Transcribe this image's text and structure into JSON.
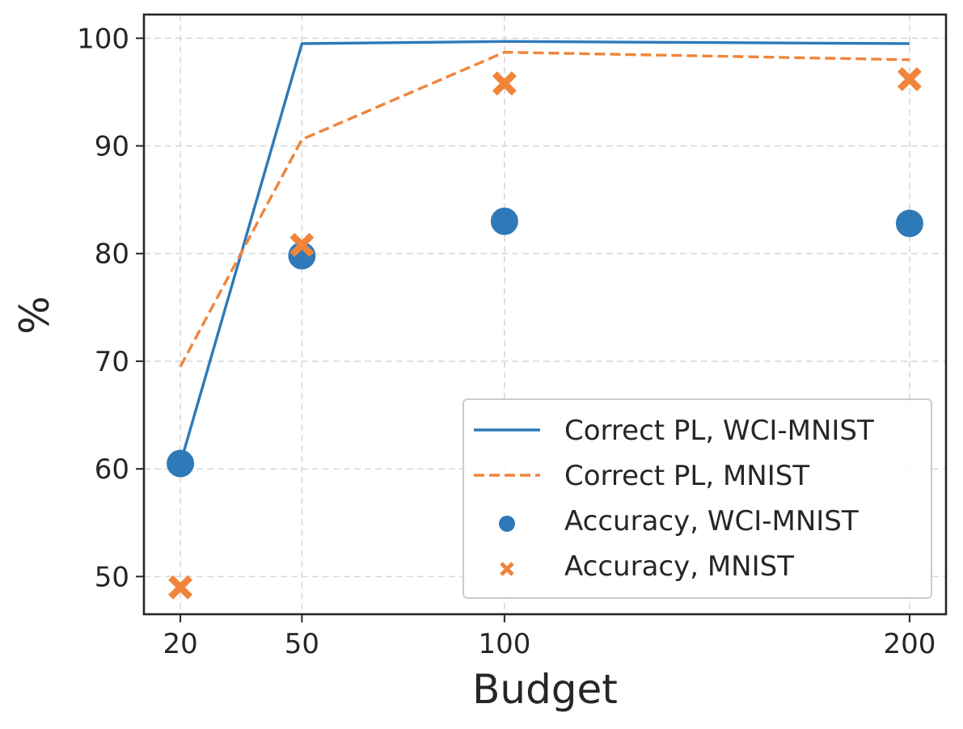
{
  "chart_data": {
    "type": "line",
    "title": "",
    "xlabel": "Budget",
    "ylabel": "%",
    "x": [
      20,
      50,
      100,
      200
    ],
    "x_tick_labels": [
      "20",
      "50",
      "100",
      "200"
    ],
    "y_ticks": [
      50,
      60,
      70,
      80,
      90,
      100
    ],
    "y_tick_labels": [
      "50",
      "60",
      "70",
      "80",
      "90",
      "100"
    ],
    "xlim": [
      11,
      209
    ],
    "ylim": [
      46.5,
      102.2
    ],
    "grid": true,
    "legend_position": "lower-right",
    "series": [
      {
        "name": "Correct PL, WCI-MNIST",
        "kind": "line",
        "style": "solid",
        "color": "#2e7ab8",
        "values": [
          60.5,
          99.5,
          99.7,
          99.5
        ]
      },
      {
        "name": "Correct PL, MNIST",
        "kind": "line",
        "style": "dashed",
        "color": "#f0843a",
        "values": [
          69.5,
          90.6,
          98.7,
          98.0
        ]
      },
      {
        "name": "Accuracy, WCI-MNIST",
        "kind": "scatter",
        "marker": "circle",
        "color": "#2e7ab8",
        "values": [
          60.5,
          79.8,
          83.0,
          82.8
        ]
      },
      {
        "name": "Accuracy, MNIST",
        "kind": "scatter",
        "marker": "x",
        "color": "#f0843a",
        "values": [
          49.0,
          80.8,
          95.8,
          96.2
        ]
      }
    ]
  }
}
